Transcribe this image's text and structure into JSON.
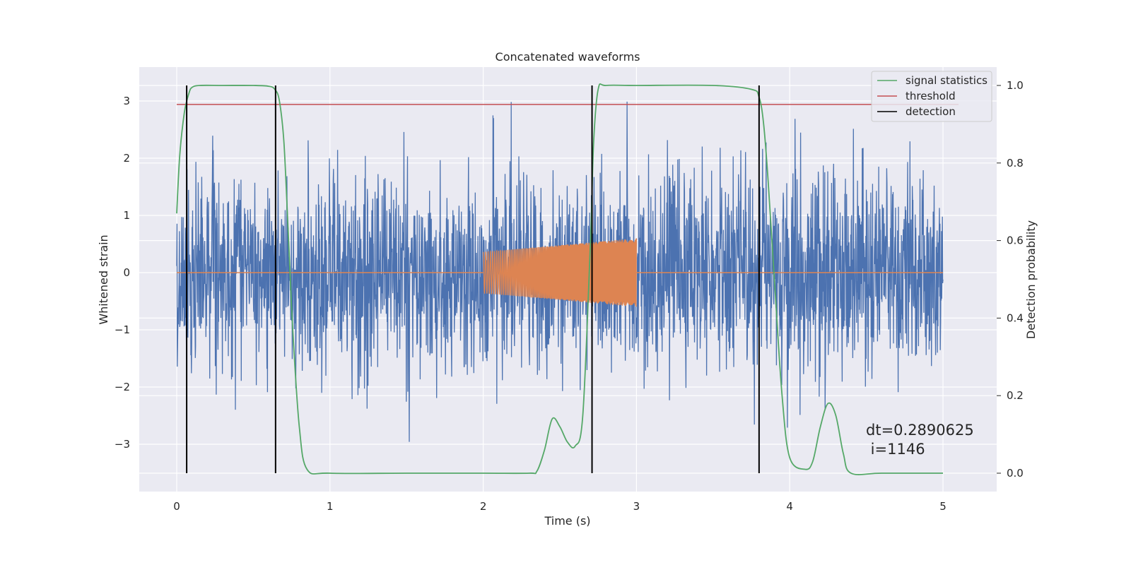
{
  "chart_data": {
    "type": "line",
    "title": "Concatenated waveforms",
    "xlabel": "Time (s)",
    "ylabel": "Whitened strain",
    "y2label": "Detection probability",
    "xlim": [
      -0.25,
      5.35
    ],
    "ylim": [
      -3.8,
      3.6
    ],
    "y2lim": [
      -0.05,
      1.04
    ],
    "xticks": [
      0,
      1,
      2,
      3,
      4,
      5
    ],
    "yticks": [
      -3,
      -2,
      -1,
      0,
      1,
      2,
      3
    ],
    "y2ticks": [
      0.0,
      0.2,
      0.4,
      0.6,
      0.8,
      1.0
    ],
    "xtick_labels": [
      "0",
      "1",
      "2",
      "3",
      "4",
      "5"
    ],
    "ytick_labels": [
      "−3",
      "−2",
      "−1",
      "0",
      "1",
      "2",
      "3"
    ],
    "y2tick_labels": [
      "0.0",
      "0.2",
      "0.4",
      "0.6",
      "0.8",
      "1.0"
    ],
    "grid": true,
    "legend_position": "top-right",
    "legend": [
      "signal statistics",
      "threshold",
      "detection"
    ],
    "colors": {
      "strain": "#4c72b0",
      "injected_waveform": "#dd8452",
      "signal_statistics": "#55a868",
      "threshold": "#c44e52",
      "detection": "#000000",
      "background": "#eaeaf2",
      "grid": "#ffffff"
    },
    "series": [
      {
        "key": "strain",
        "axis": "left",
        "t_range": [
          0,
          5
        ],
        "amplitude_range": [
          -3.1,
          3.25
        ],
        "typical_envelope": 2.2
      },
      {
        "key": "injected_waveform",
        "axis": "left",
        "t_range": [
          2.0,
          3.0
        ],
        "amplitude_start": 0.36,
        "amplitude_end": 0.6
      },
      {
        "name": "signal statistics",
        "axis": "right",
        "x": [
          0,
          0.02,
          0.05,
          0.08,
          0.1,
          0.15,
          0.3,
          0.5,
          0.6,
          0.64,
          0.67,
          0.7,
          0.73,
          0.76,
          0.8,
          0.85,
          1.0,
          1.5,
          2.0,
          2.3,
          2.35,
          2.4,
          2.45,
          2.5,
          2.55,
          2.6,
          2.65,
          2.7,
          2.72,
          2.75,
          2.8,
          3.0,
          3.5,
          3.75,
          3.8,
          3.83,
          3.86,
          3.9,
          3.95,
          4.0,
          4.1,
          4.15,
          4.2,
          4.25,
          4.3,
          4.35,
          4.4,
          4.6,
          5.0
        ],
        "y": [
          0.67,
          0.82,
          0.93,
          0.98,
          0.995,
          1.0,
          1.0,
          1.0,
          0.998,
          0.99,
          0.96,
          0.85,
          0.6,
          0.35,
          0.12,
          0.01,
          0.0,
          0.0,
          0.0,
          0.0,
          0.005,
          0.06,
          0.14,
          0.12,
          0.08,
          0.07,
          0.15,
          0.6,
          0.85,
          0.99,
          1.0,
          1.0,
          1.0,
          0.99,
          0.97,
          0.9,
          0.75,
          0.5,
          0.2,
          0.04,
          0.01,
          0.03,
          0.12,
          0.18,
          0.15,
          0.05,
          0.0,
          0.0,
          0.0
        ]
      },
      {
        "name": "threshold",
        "axis": "right",
        "value": 0.951,
        "x_range": [
          0,
          5
        ]
      },
      {
        "name": "detection",
        "axis": "right",
        "x": [
          0.065,
          0.645,
          2.71,
          3.8
        ],
        "y_range": [
          0.0,
          1.0
        ]
      }
    ],
    "annotation": {
      "lines": [
        "dt=0.2890625",
        " i=1146"
      ],
      "x": 4.52,
      "y": 0.11
    }
  }
}
